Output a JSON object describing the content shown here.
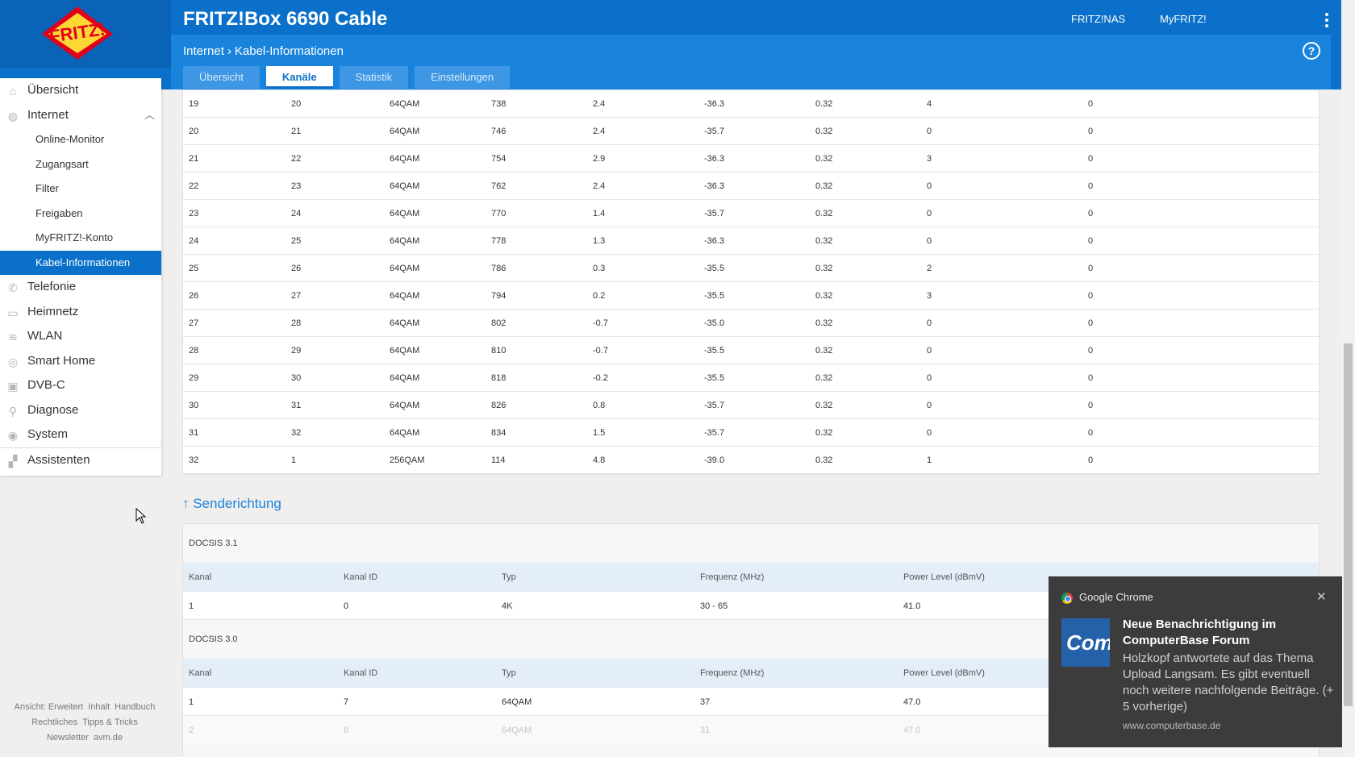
{
  "header": {
    "title": "FRITZ!Box 6690 Cable",
    "links": [
      "FRITZ!NAS",
      "MyFRITZ!"
    ],
    "breadcrumb": [
      "Internet",
      "Kabel-Informationen"
    ],
    "help": "?",
    "tabs": [
      "Übersicht",
      "Kanäle",
      "Statistik",
      "Einstellungen"
    ],
    "active_tab": "Kanäle"
  },
  "sidebar": {
    "items": [
      {
        "label": "Übersicht",
        "icon": "home-icon"
      },
      {
        "label": "Internet",
        "icon": "globe-icon",
        "expanded": true
      },
      {
        "label": "Telefonie",
        "icon": "phone-icon"
      },
      {
        "label": "Heimnetz",
        "icon": "network-icon"
      },
      {
        "label": "WLAN",
        "icon": "wifi-icon"
      },
      {
        "label": "Smart Home",
        "icon": "smart-home-icon"
      },
      {
        "label": "DVB-C",
        "icon": "tv-icon"
      },
      {
        "label": "Diagnose",
        "icon": "diagnose-icon"
      },
      {
        "label": "System",
        "icon": "system-icon"
      },
      {
        "label": "Assistenten",
        "icon": "wizard-icon"
      }
    ],
    "subitems": [
      "Online-Monitor",
      "Zugangsart",
      "Filter",
      "Freigaben",
      "MyFRITZ!-Konto",
      "Kabel-Informationen"
    ],
    "active_subitem": "Kabel-Informationen",
    "footer": {
      "line1": [
        "Ansicht: Erweitert",
        "Inhalt",
        "Handbuch"
      ],
      "line2": [
        "Rechtliches",
        "Tipps & Tricks"
      ],
      "line3": [
        "Newsletter",
        "avm.de"
      ]
    }
  },
  "downstream_rows": [
    [
      "19",
      "20",
      "64QAM",
      "738",
      "2.4",
      "-36.3",
      "0.32",
      "4",
      "0"
    ],
    [
      "20",
      "21",
      "64QAM",
      "746",
      "2.4",
      "-35.7",
      "0.32",
      "0",
      "0"
    ],
    [
      "21",
      "22",
      "64QAM",
      "754",
      "2.9",
      "-36.3",
      "0.32",
      "3",
      "0"
    ],
    [
      "22",
      "23",
      "64QAM",
      "762",
      "2.4",
      "-36.3",
      "0.32",
      "0",
      "0"
    ],
    [
      "23",
      "24",
      "64QAM",
      "770",
      "1.4",
      "-35.7",
      "0.32",
      "0",
      "0"
    ],
    [
      "24",
      "25",
      "64QAM",
      "778",
      "1.3",
      "-36.3",
      "0.32",
      "0",
      "0"
    ],
    [
      "25",
      "26",
      "64QAM",
      "786",
      "0.3",
      "-35.5",
      "0.32",
      "2",
      "0"
    ],
    [
      "26",
      "27",
      "64QAM",
      "794",
      "0.2",
      "-35.5",
      "0.32",
      "3",
      "0"
    ],
    [
      "27",
      "28",
      "64QAM",
      "802",
      "-0.7",
      "-35.0",
      "0.32",
      "0",
      "0"
    ],
    [
      "28",
      "29",
      "64QAM",
      "810",
      "-0.7",
      "-35.5",
      "0.32",
      "0",
      "0"
    ],
    [
      "29",
      "30",
      "64QAM",
      "818",
      "-0.2",
      "-35.5",
      "0.32",
      "0",
      "0"
    ],
    [
      "30",
      "31",
      "64QAM",
      "826",
      "0.8",
      "-35.7",
      "0.32",
      "0",
      "0"
    ],
    [
      "31",
      "32",
      "64QAM",
      "834",
      "1.5",
      "-35.7",
      "0.32",
      "0",
      "0"
    ],
    [
      "32",
      "1",
      "256QAM",
      "114",
      "4.8",
      "-39.0",
      "0.32",
      "1",
      "0"
    ]
  ],
  "upstream": {
    "section_title": "↑ Senderichtung",
    "columns": [
      "Kanal",
      "Kanal ID",
      "Typ",
      "Frequenz (MHz)",
      "Power Level (dBmV)"
    ],
    "docsis31": {
      "label": "DOCSIS 3.1",
      "rows": [
        [
          "1",
          "0",
          "4K",
          "30 - 65",
          "41.0"
        ]
      ]
    },
    "docsis30": {
      "label": "DOCSIS 3.0",
      "rows": [
        [
          "1",
          "7",
          "64QAM",
          "37",
          "47.0"
        ],
        [
          "2",
          "8",
          "64QAM",
          "31",
          "47.0"
        ]
      ]
    }
  },
  "notification": {
    "app": "Google Chrome",
    "close": "✕",
    "title": "Neue Benachrichtigung im ComputerBase Forum",
    "body": "Holzkopf antwortete auf das Thema Upload Langsam. Es gibt eventuell noch weitere nachfolgende Beiträge. (+ 5 vorherige)",
    "site": "www.computerbase.de",
    "image_text": "Comp"
  }
}
